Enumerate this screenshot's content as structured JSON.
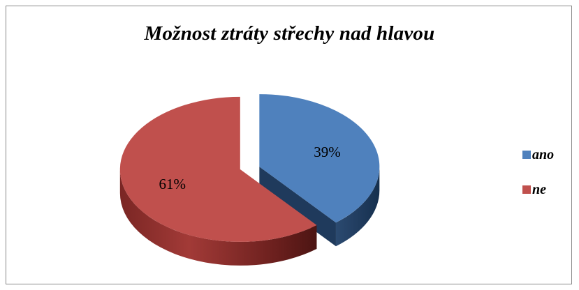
{
  "chart_data": {
    "type": "pie",
    "title": "Možnost ztráty střechy nad hlavou",
    "three_d": true,
    "exploded": true,
    "legend_position": "right",
    "categories": [
      "ano",
      "ne"
    ],
    "values": [
      39,
      61
    ],
    "data_labels": [
      "39%",
      "61%"
    ],
    "colors": [
      "#4f81bd",
      "#c0504d"
    ]
  }
}
